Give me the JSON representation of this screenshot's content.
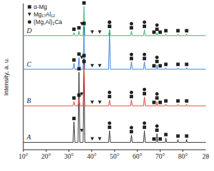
{
  "chart_data": {
    "type": "line",
    "x_label": "2θ",
    "y_label": "Intensity, a. u.",
    "tick_labels": "x",
    "xlim": [
      10,
      90
    ],
    "ylim": [
      0,
      100
    ],
    "xticks": [
      {
        "value": 10,
        "label": "10°"
      },
      {
        "value": 20,
        "label": "20°"
      },
      {
        "value": 30,
        "label": "30°"
      },
      {
        "value": 40,
        "label": "40°"
      },
      {
        "value": 50,
        "label": "50°"
      },
      {
        "value": 60,
        "label": "60°"
      },
      {
        "value": 70,
        "label": "70°"
      },
      {
        "value": 80,
        "label": "80°"
      }
    ],
    "legend": "upper left",
    "x": [
      10,
      31.8,
      32.2,
      32.6,
      34.0,
      34.4,
      34.8,
      36.2,
      36.6,
      37.0,
      40.0,
      47.4,
      47.8,
      48.2,
      57.0,
      57.4,
      57.8,
      62.7,
      63.1,
      63.5,
      68.3,
      68.6,
      68.9,
      72.2,
      72.5,
      72.8,
      77.5,
      77.8,
      78.1,
      81.3,
      81.6,
      81.9,
      90
    ],
    "series": [
      {
        "name": "A",
        "color": "#333333",
        "values": [
          5,
          5,
          19,
          5,
          5,
          53,
          5,
          5,
          62,
          5,
          5,
          5,
          13,
          5,
          5,
          10,
          5,
          5,
          13,
          5,
          5,
          11,
          5,
          5,
          8,
          5,
          5,
          7,
          5,
          5,
          7,
          5,
          5
        ]
      },
      {
        "name": "B",
        "color": "#e8433c",
        "values": [
          30,
          30,
          33,
          30,
          30,
          35,
          30,
          30,
          58,
          30,
          30,
          30,
          34,
          30,
          30,
          34,
          30,
          30,
          36,
          30,
          30,
          33,
          30,
          30,
          31,
          30,
          30,
          31,
          30,
          30,
          31,
          30,
          30
        ]
      },
      {
        "name": "C",
        "color": "#3a7fd5",
        "values": [
          55,
          55,
          59,
          55,
          55,
          63,
          55,
          55,
          84,
          55,
          55,
          55,
          82,
          55,
          55,
          60,
          55,
          55,
          60,
          55,
          55,
          58,
          55,
          55,
          56,
          55,
          55,
          56,
          55,
          55,
          56,
          55,
          55
        ]
      },
      {
        "name": "D",
        "color": "#2db36a",
        "values": [
          78,
          78,
          80,
          78,
          78,
          81,
          78,
          78,
          98,
          78,
          78,
          78,
          82,
          78,
          78,
          81,
          78,
          78,
          82,
          78,
          78,
          80,
          78,
          78,
          79,
          78,
          78,
          79,
          78,
          78,
          79,
          78,
          78
        ]
      }
    ],
    "phases": [
      {
        "name": "α-Mg",
        "marker": "square",
        "x": [
          32.2,
          34.4,
          36.6,
          47.8,
          57.4,
          63.1,
          67.3,
          68.6,
          70.0,
          72.5,
          77.8,
          81.6
        ]
      },
      {
        "name": "Mg₁₇Al₁₂",
        "marker": "triangle-down",
        "x": [
          35.6,
          40.2,
          43.5
        ]
      },
      {
        "name": "(Mg,Al)₂Ca",
        "marker": "circle",
        "x": [
          47.8,
          57.4,
          63.1,
          68.6
        ]
      }
    ]
  }
}
